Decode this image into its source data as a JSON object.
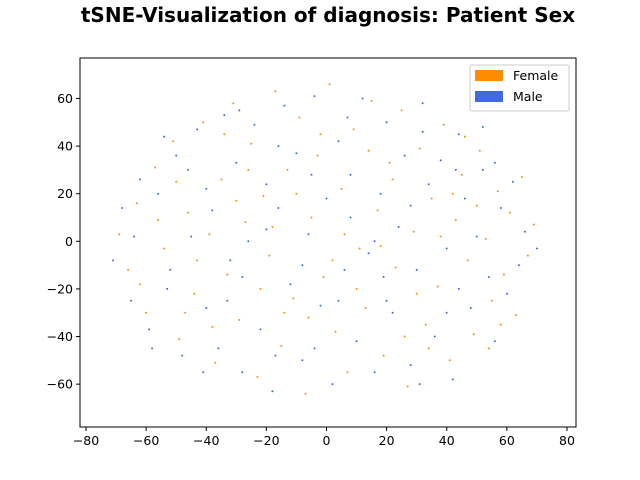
{
  "chart_data": {
    "type": "scatter",
    "title": "tSNE-Visualization of diagnosis: Patient Sex",
    "xlabel": "",
    "ylabel": "",
    "xlim": [
      -82,
      83
    ],
    "ylim": [
      -78,
      77
    ],
    "xticks": [
      -80,
      -60,
      -40,
      -20,
      0,
      20,
      40,
      60,
      80
    ],
    "yticks": [
      -60,
      -40,
      -20,
      0,
      20,
      40,
      60
    ],
    "xtick_labels": [
      "−80",
      "−60",
      "−40",
      "−20",
      "0",
      "20",
      "40",
      "60",
      "80"
    ],
    "ytick_labels": [
      "−60",
      "−40",
      "−20",
      "0",
      "20",
      "40",
      "60"
    ],
    "grid": false,
    "legend_position": "top-right",
    "series": [
      {
        "name": "Female",
        "color": "#ff8c00",
        "points": [
          [
            -69,
            3
          ],
          [
            -66,
            -12
          ],
          [
            -63,
            16
          ],
          [
            -60,
            -30
          ],
          [
            -57,
            31
          ],
          [
            -54,
            -3
          ],
          [
            -51,
            42
          ],
          [
            -49,
            -41
          ],
          [
            -46,
            12
          ],
          [
            -44,
            -22
          ],
          [
            -41,
            50
          ],
          [
            -39,
            3
          ],
          [
            -37,
            -51
          ],
          [
            -35,
            26
          ],
          [
            -33,
            -14
          ],
          [
            -31,
            58
          ],
          [
            -29,
            -33
          ],
          [
            -27,
            8
          ],
          [
            -25,
            41
          ],
          [
            -23,
            -57
          ],
          [
            -21,
            19
          ],
          [
            -19,
            -6
          ],
          [
            -17,
            63
          ],
          [
            -15,
            -44
          ],
          [
            -13,
            30
          ],
          [
            -11,
            -24
          ],
          [
            -9,
            52
          ],
          [
            -7,
            -64
          ],
          [
            -5,
            10
          ],
          [
            -3,
            36
          ],
          [
            -1,
            -15
          ],
          [
            1,
            66
          ],
          [
            3,
            -38
          ],
          [
            5,
            22
          ],
          [
            7,
            -55
          ],
          [
            9,
            47
          ],
          [
            11,
            -3
          ],
          [
            13,
            -28
          ],
          [
            15,
            59
          ],
          [
            17,
            13
          ],
          [
            19,
            -48
          ],
          [
            21,
            33
          ],
          [
            23,
            -11
          ],
          [
            25,
            55
          ],
          [
            27,
            -61
          ],
          [
            29,
            4
          ],
          [
            31,
            39
          ],
          [
            33,
            -35
          ],
          [
            35,
            18
          ],
          [
            37,
            -19
          ],
          [
            39,
            49
          ],
          [
            41,
            -50
          ],
          [
            43,
            9
          ],
          [
            45,
            28
          ],
          [
            47,
            -8
          ],
          [
            49,
            -39
          ],
          [
            51,
            38
          ],
          [
            53,
            1
          ],
          [
            55,
            -25
          ],
          [
            57,
            21
          ],
          [
            59,
            -14
          ],
          [
            61,
            12
          ],
          [
            63,
            -31
          ],
          [
            65,
            27
          ],
          [
            67,
            -6
          ],
          [
            69,
            7
          ],
          [
            -62,
            -18
          ],
          [
            -50,
            25
          ],
          [
            -38,
            -36
          ],
          [
            -26,
            30
          ],
          [
            -14,
            -30
          ],
          [
            -2,
            45
          ],
          [
            10,
            -20
          ],
          [
            22,
            26
          ],
          [
            34,
            -45
          ],
          [
            46,
            44
          ],
          [
            58,
            -35
          ],
          [
            -56,
            9
          ],
          [
            -43,
            -8
          ],
          [
            -30,
            17
          ],
          [
            -18,
            6
          ],
          [
            -6,
            -32
          ],
          [
            6,
            3
          ],
          [
            18,
            -2
          ],
          [
            30,
            -22
          ],
          [
            42,
            20
          ],
          [
            54,
            -45
          ],
          [
            -47,
            -30
          ],
          [
            -34,
            45
          ],
          [
            -22,
            -20
          ],
          [
            -10,
            20
          ],
          [
            2,
            -8
          ],
          [
            14,
            38
          ],
          [
            26,
            -40
          ],
          [
            38,
            2
          ],
          [
            50,
            15
          ]
        ]
      },
      {
        "name": "Male",
        "color": "#4169e1",
        "points": [
          [
            -71,
            -8
          ],
          [
            -68,
            14
          ],
          [
            -65,
            -25
          ],
          [
            -62,
            26
          ],
          [
            -59,
            -37
          ],
          [
            -56,
            20
          ],
          [
            -53,
            -20
          ],
          [
            -50,
            36
          ],
          [
            -48,
            -48
          ],
          [
            -45,
            2
          ],
          [
            -43,
            47
          ],
          [
            -40,
            -28
          ],
          [
            -38,
            13
          ],
          [
            -36,
            -45
          ],
          [
            -34,
            53
          ],
          [
            -32,
            -8
          ],
          [
            -30,
            33
          ],
          [
            -28,
            -55
          ],
          [
            -26,
            0
          ],
          [
            -24,
            49
          ],
          [
            -22,
            -37
          ],
          [
            -20,
            24
          ],
          [
            -18,
            -63
          ],
          [
            -16,
            14
          ],
          [
            -14,
            57
          ],
          [
            -12,
            -18
          ],
          [
            -10,
            37
          ],
          [
            -8,
            -50
          ],
          [
            -6,
            3
          ],
          [
            -4,
            61
          ],
          [
            -2,
            -27
          ],
          [
            0,
            18
          ],
          [
            2,
            -60
          ],
          [
            4,
            42
          ],
          [
            6,
            -12
          ],
          [
            8,
            28
          ],
          [
            10,
            -42
          ],
          [
            12,
            60
          ],
          [
            14,
            -5
          ],
          [
            16,
            -55
          ],
          [
            18,
            20
          ],
          [
            20,
            50
          ],
          [
            22,
            -30
          ],
          [
            24,
            6
          ],
          [
            26,
            36
          ],
          [
            28,
            -52
          ],
          [
            30,
            -12
          ],
          [
            32,
            58
          ],
          [
            34,
            24
          ],
          [
            36,
            -40
          ],
          [
            38,
            34
          ],
          [
            40,
            -3
          ],
          [
            42,
            -58
          ],
          [
            44,
            45
          ],
          [
            46,
            18
          ],
          [
            48,
            -28
          ],
          [
            50,
            2
          ],
          [
            52,
            30
          ],
          [
            54,
            -15
          ],
          [
            56,
            -42
          ],
          [
            58,
            14
          ],
          [
            60,
            -22
          ],
          [
            62,
            25
          ],
          [
            64,
            -10
          ],
          [
            66,
            4
          ],
          [
            70,
            -3
          ],
          [
            -64,
            2
          ],
          [
            -52,
            -12
          ],
          [
            -40,
            22
          ],
          [
            -28,
            -15
          ],
          [
            -16,
            40
          ],
          [
            -4,
            -45
          ],
          [
            8,
            10
          ],
          [
            20,
            -25
          ],
          [
            32,
            46
          ],
          [
            44,
            -20
          ],
          [
            56,
            33
          ],
          [
            -58,
            -45
          ],
          [
            -46,
            30
          ],
          [
            -33,
            -25
          ],
          [
            -20,
            5
          ],
          [
            -8,
            -10
          ],
          [
            4,
            -25
          ],
          [
            16,
            0
          ],
          [
            28,
            15
          ],
          [
            40,
            -30
          ],
          [
            52,
            48
          ],
          [
            -54,
            44
          ],
          [
            -41,
            -55
          ],
          [
            -29,
            55
          ],
          [
            -17,
            -48
          ],
          [
            -5,
            28
          ],
          [
            7,
            52
          ],
          [
            19,
            -15
          ],
          [
            31,
            -60
          ],
          [
            43,
            30
          ]
        ]
      }
    ]
  }
}
